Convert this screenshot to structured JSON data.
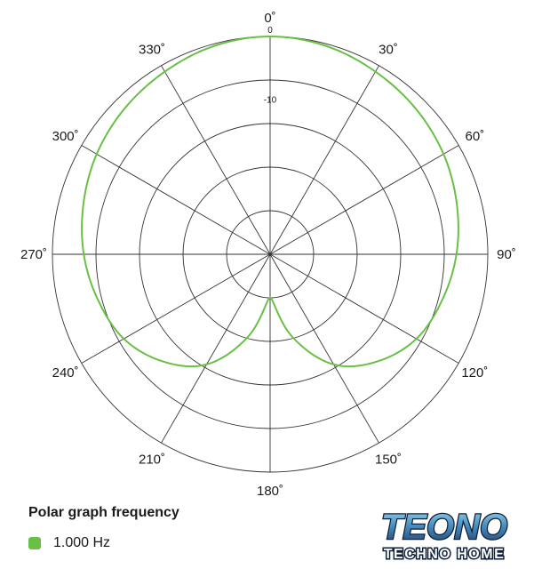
{
  "chart_data": {
    "type": "polar",
    "angle_labels": [
      "0˚",
      "30˚",
      "60˚",
      "90˚",
      "120˚",
      "150˚",
      "180˚",
      "210˚",
      "240˚",
      "270˚",
      "300˚",
      "330˚"
    ],
    "radial_axis": {
      "ring_labels": [
        "0",
        "-10"
      ],
      "range_db": [
        -25,
        0
      ],
      "ring_values_db": [
        -20,
        -15,
        -10,
        -5,
        0
      ]
    },
    "grid": true,
    "series": [
      {
        "name": "1.000 Hz",
        "color": "#6abf45",
        "angles_deg": [
          0,
          15,
          30,
          45,
          60,
          75,
          90,
          105,
          120,
          135,
          150,
          165,
          180,
          195,
          210,
          225,
          240,
          255,
          270,
          285,
          300,
          315,
          330,
          345,
          360
        ],
        "level_db": [
          0,
          -0.3,
          -1.0,
          -1.7,
          -2.5,
          -3.5,
          -4.5,
          -5.7,
          -7.0,
          -9.5,
          -13.0,
          -19.0,
          -25.0,
          -19.0,
          -13.0,
          -9.5,
          -7.0,
          -5.7,
          -4.5,
          -3.5,
          -2.5,
          -1.7,
          -1.0,
          -0.3,
          0
        ]
      }
    ]
  },
  "legend": {
    "title": "Polar graph frequency",
    "items": [
      {
        "label": "1.000 Hz",
        "color": "#6abf45"
      }
    ]
  },
  "logo": {
    "wordmark": "TEONO",
    "tagline": "TECHNO HOME"
  }
}
